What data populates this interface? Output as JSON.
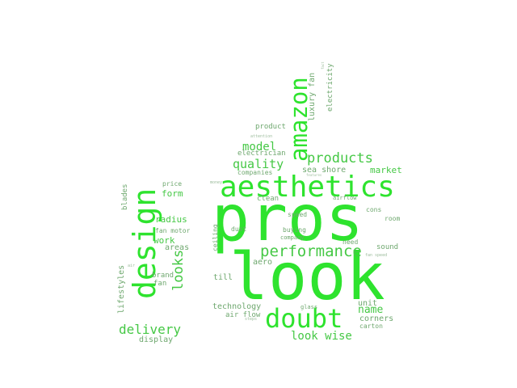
{
  "colors": {
    "bright": "#2ee32e",
    "mid": "#45c845",
    "muted": "#6fa86f",
    "faint": "#9cbc9c"
  },
  "words": {
    "pros": "pros",
    "look": "look",
    "aesthetics": "aesthetics",
    "amazon": "amazon",
    "doubt": "doubt",
    "design": "design",
    "performance": "performance",
    "products": "products",
    "quality": "quality",
    "model": "model",
    "looks": "looks",
    "delivery": "delivery",
    "look_wise": "look wise",
    "name": "name",
    "market": "market",
    "sea_shore": "sea shore",
    "luxury_fan": "luxury fan",
    "electricity": "electricity",
    "product": "product",
    "electrician": "electrician",
    "companies": "companies",
    "price": "price",
    "form": "form",
    "radius": "radius",
    "fan_motor": "fan motor",
    "work": "work",
    "areas": "areas",
    "brand": "brand",
    "fan": "fan",
    "blades": "blades",
    "lifestyles": "lifestyles",
    "display": "display",
    "technology": "technology",
    "air_flow": "air flow",
    "steps": "steps",
    "till": "till",
    "aero": "aero",
    "clean": "clean",
    "speed": "speed",
    "buying": "buying",
    "company": "company",
    "dust": "dust",
    "ceiling": "ceiling",
    "airflow": "airflow",
    "cons": "cons",
    "room": "room",
    "need": "need",
    "sound": "sound",
    "unit": "unit",
    "corners": "corners",
    "carton": "carton",
    "glass": "glass",
    "fan_speed": "fan speed",
    "attention": "attention",
    "money": "money",
    "features": "features",
    "air": "air",
    "fact": "fact"
  }
}
